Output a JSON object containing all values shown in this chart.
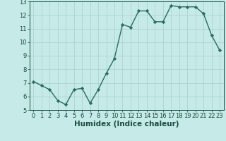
{
  "x": [
    0,
    1,
    2,
    3,
    4,
    5,
    6,
    7,
    8,
    9,
    10,
    11,
    12,
    13,
    14,
    15,
    16,
    17,
    18,
    19,
    20,
    21,
    22,
    23
  ],
  "y": [
    7.1,
    6.8,
    6.5,
    5.7,
    5.4,
    6.5,
    6.6,
    5.5,
    6.5,
    7.7,
    8.8,
    11.3,
    11.1,
    12.3,
    12.3,
    11.5,
    11.5,
    12.7,
    12.6,
    12.6,
    12.6,
    12.1,
    10.5,
    9.4
  ],
  "line_color": "#2a6b5f",
  "marker": "D",
  "markersize": 2.2,
  "linewidth": 1.0,
  "bg_color": "#c5eae7",
  "grid_color": "#aed4d0",
  "xlabel": "Humidex (Indice chaleur)",
  "ylim": [
    5,
    13
  ],
  "xlim": [
    -0.5,
    23.5
  ],
  "yticks": [
    5,
    6,
    7,
    8,
    9,
    10,
    11,
    12,
    13
  ],
  "xticks": [
    0,
    1,
    2,
    3,
    4,
    5,
    6,
    7,
    8,
    9,
    10,
    11,
    12,
    13,
    14,
    15,
    16,
    17,
    18,
    19,
    20,
    21,
    22,
    23
  ],
  "tick_fontsize": 6,
  "xlabel_fontsize": 7.5,
  "tick_color": "#1a4a40",
  "spine_color": "#1a4a40"
}
